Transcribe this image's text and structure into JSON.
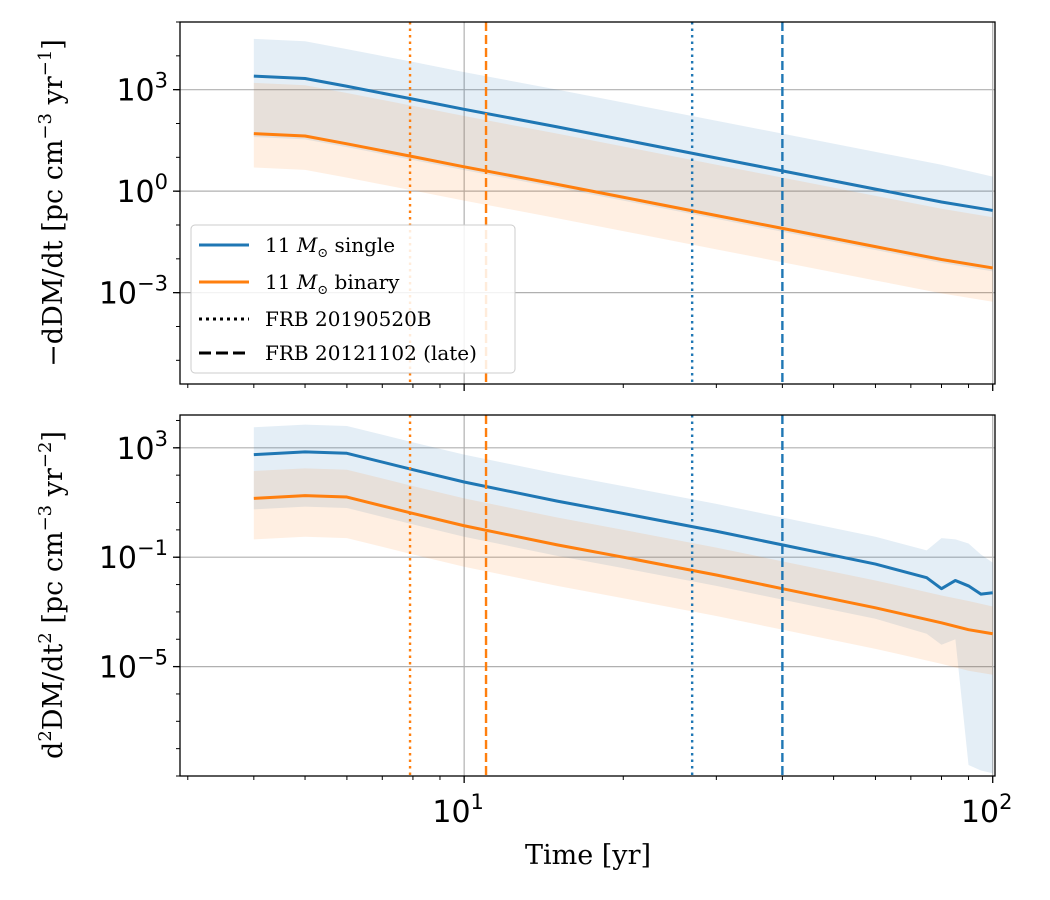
{
  "chart_data": [
    {
      "type": "line",
      "ylabel": "−dDM/dt [pc cm",
      "ylabel_unit_exp": "−3",
      "ylabel_mid": " yr",
      "ylabel_unit_exp2": "−1",
      "ylabel_end": "]",
      "x_scale": "log",
      "y_scale": "log",
      "xlim": [
        2.9,
        101
      ],
      "ylim_exp": [
        -5.7,
        5.0
      ],
      "grid": true,
      "legend_placement": "lower-left",
      "yticks": [
        {
          "base": "10",
          "exp": "3",
          "value_exp": 3
        },
        {
          "base": "10",
          "exp": "0",
          "value_exp": 0
        },
        {
          "base": "10",
          "exp": "−3",
          "value_exp": -3
        }
      ],
      "series": [
        {
          "name": "11 M⊙ single",
          "color": "#1f77b4",
          "x": [
            4,
            5,
            6,
            8,
            10,
            15,
            20,
            30,
            40,
            60,
            80,
            100
          ],
          "log10_y": [
            3.4,
            3.33,
            3.1,
            2.72,
            2.42,
            1.9,
            1.52,
            0.98,
            0.6,
            0.06,
            -0.32,
            -0.57
          ],
          "band_log10_low": [
            1.6,
            1.53,
            1.3,
            0.92,
            0.62,
            0.1,
            -0.28,
            -0.82,
            -1.2,
            -1.74,
            -2.12,
            -2.37
          ],
          "band_log10_high": [
            4.5,
            4.43,
            4.2,
            3.82,
            3.52,
            3.0,
            2.62,
            2.08,
            1.7,
            1.16,
            0.78,
            0.43
          ]
        },
        {
          "name": "11 M⊙ binary",
          "color": "#ff7f0e",
          "x": [
            4,
            5,
            6,
            8,
            10,
            15,
            20,
            30,
            40,
            60,
            80,
            100
          ],
          "log10_y": [
            1.7,
            1.63,
            1.4,
            1.02,
            0.72,
            0.2,
            -0.18,
            -0.72,
            -1.1,
            -1.64,
            -2.02,
            -2.27
          ],
          "band_log10_low": [
            0.7,
            0.63,
            0.4,
            0.02,
            -0.28,
            -0.8,
            -1.18,
            -1.72,
            -2.1,
            -2.64,
            -3.02,
            -3.27
          ],
          "band_log10_high": [
            3.2,
            3.13,
            2.9,
            2.52,
            2.22,
            1.7,
            1.32,
            0.78,
            0.4,
            -0.14,
            -0.52,
            -0.77
          ]
        }
      ]
    },
    {
      "type": "line",
      "ylabel_pre": "d",
      "ylabel_exp_a": "2",
      "ylabel_mid": "DM/dt",
      "ylabel_exp_b": "2",
      "ylabel_rest": " [pc cm",
      "ylabel_exp_c": "−3",
      "ylabel_yr": " yr",
      "ylabel_exp_d": "−2",
      "ylabel_end": "]",
      "x_scale": "log",
      "y_scale": "log",
      "xlim": [
        2.9,
        101
      ],
      "ylim_exp": [
        -9.0,
        4.2
      ],
      "grid": true,
      "yticks": [
        {
          "base": "10",
          "exp": "3",
          "value_exp": 3
        },
        {
          "base": "10",
          "exp": "−1",
          "value_exp": -1
        },
        {
          "base": "10",
          "exp": "−5",
          "value_exp": -5
        }
      ],
      "series": [
        {
          "name": "11 M⊙ single",
          "color": "#1f77b4",
          "x": [
            4,
            5,
            6,
            8,
            10,
            15,
            20,
            30,
            40,
            60,
            75,
            80,
            85,
            90,
            95,
            100
          ],
          "log10_y": [
            2.75,
            2.85,
            2.8,
            2.2,
            1.75,
            1.05,
            0.6,
            -0.05,
            -0.55,
            -1.25,
            -1.75,
            -2.15,
            -1.85,
            -2.05,
            -2.35,
            -2.3
          ],
          "band_log10_low": [
            0.75,
            0.85,
            0.8,
            0.2,
            -0.25,
            -0.95,
            -1.4,
            -2.05,
            -2.55,
            -3.25,
            -3.8,
            -4.2,
            -4.0,
            -8.6,
            -8.8,
            -8.9
          ],
          "band_log10_high": [
            3.75,
            3.85,
            3.8,
            3.2,
            2.75,
            2.05,
            1.6,
            0.95,
            0.45,
            -0.25,
            -0.75,
            -0.3,
            -0.35,
            -0.5,
            -0.9,
            -1.2
          ]
        },
        {
          "name": "11 M⊙ binary",
          "color": "#ff7f0e",
          "x": [
            4,
            5,
            6,
            8,
            10,
            15,
            20,
            30,
            40,
            60,
            80,
            90,
            100
          ],
          "log10_y": [
            1.15,
            1.25,
            1.2,
            0.6,
            0.15,
            -0.55,
            -1.0,
            -1.65,
            -2.15,
            -2.85,
            -3.4,
            -3.65,
            -3.8
          ],
          "band_log10_low": [
            -0.35,
            -0.25,
            -0.3,
            -0.9,
            -1.35,
            -2.05,
            -2.5,
            -3.15,
            -3.65,
            -4.35,
            -4.9,
            -5.15,
            -5.3
          ],
          "band_log10_high": [
            2.15,
            2.25,
            2.2,
            1.6,
            1.15,
            0.45,
            0.0,
            -0.65,
            -1.15,
            -1.85,
            -2.4,
            -2.6,
            -2.8
          ]
        }
      ]
    }
  ],
  "shared_x": {
    "xlabel": "Time [yr]",
    "xticks": [
      {
        "base": "10",
        "exp": "1",
        "value": 10
      },
      {
        "base": "10",
        "exp": "2",
        "value": 100
      }
    ]
  },
  "vlines": [
    {
      "x": 7.9,
      "color": "#ff7f0e",
      "style": "dotted"
    },
    {
      "x": 11.0,
      "color": "#ff7f0e",
      "style": "dashed"
    },
    {
      "x": 27.0,
      "color": "#1f77b4",
      "style": "dotted"
    },
    {
      "x": 40.0,
      "color": "#1f77b4",
      "style": "dashed"
    }
  ],
  "legend": [
    {
      "kind": "line",
      "color": "#1f77b4",
      "style": "solid",
      "label_pre": "11 ",
      "label_it": "M",
      "label_sub": "⊙",
      "label_post": " single"
    },
    {
      "kind": "line",
      "color": "#ff7f0e",
      "style": "solid",
      "label_pre": "11 ",
      "label_it": "M",
      "label_sub": "⊙",
      "label_post": " binary"
    },
    {
      "kind": "line",
      "color": "#000000",
      "style": "dotted",
      "label": "FRB 20190520B"
    },
    {
      "kind": "line",
      "color": "#000000",
      "style": "dashed",
      "label": "FRB 20121102 (late)"
    }
  ]
}
